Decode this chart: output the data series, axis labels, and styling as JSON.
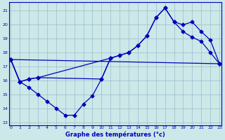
{
  "background_color": "#cce8e8",
  "grid_color": "#9bbccc",
  "line_color": "#0000bb",
  "xlabel": "Graphe des températures (°c)",
  "xlim": [
    -0.2,
    23.2
  ],
  "ylim": [
    12.8,
    21.6
  ],
  "yticks": [
    13,
    14,
    15,
    16,
    17,
    18,
    19,
    20,
    21
  ],
  "xticks": [
    0,
    1,
    2,
    3,
    4,
    5,
    6,
    7,
    8,
    9,
    10,
    11,
    12,
    13,
    14,
    15,
    16,
    17,
    18,
    19,
    20,
    21,
    22,
    23
  ],
  "line1_x": [
    0,
    1,
    2,
    3,
    4,
    5,
    6,
    7,
    8,
    9,
    10,
    11
  ],
  "line1_y": [
    17.5,
    15.9,
    15.5,
    15.0,
    14.5,
    14.0,
    13.5,
    13.5,
    14.3,
    14.9,
    16.1,
    17.6
  ],
  "line2_x": [
    0,
    1,
    2,
    3,
    11,
    12,
    13,
    14,
    15,
    16,
    17,
    18,
    19,
    20,
    21,
    22,
    23
  ],
  "line2_y": [
    17.5,
    15.9,
    16.1,
    16.2,
    17.6,
    17.8,
    18.0,
    18.5,
    19.2,
    20.5,
    21.2,
    20.2,
    20.0,
    20.2,
    19.5,
    18.9,
    17.2
  ],
  "line3_x": [
    0,
    1,
    2,
    3,
    10,
    11,
    12,
    13,
    14,
    15,
    16,
    17,
    18,
    19,
    20,
    21,
    22,
    23
  ],
  "line3_y": [
    17.5,
    15.9,
    16.1,
    16.2,
    16.1,
    17.6,
    17.8,
    18.0,
    18.5,
    19.2,
    20.5,
    21.2,
    20.2,
    19.5,
    19.1,
    18.8,
    18.0,
    17.2
  ],
  "line4_x": [
    0,
    23
  ],
  "line4_y": [
    17.5,
    17.2
  ]
}
